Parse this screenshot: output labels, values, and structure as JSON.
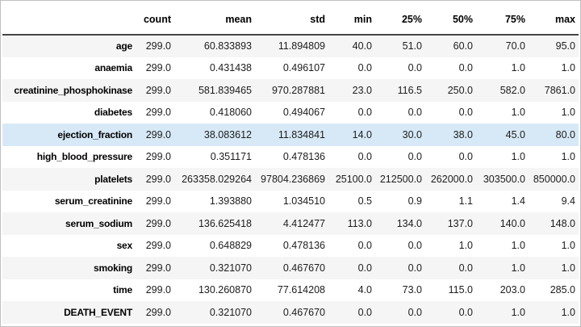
{
  "accent_colors": {
    "row_stripe": "#f5f5f5",
    "row_highlight": "#d7e9f7",
    "header_rule": "#454545",
    "frame_border": "#bfbfbf"
  },
  "chart_data": {
    "type": "table",
    "description": "pandas describe() summary statistics table, ejection_fraction row highlighted",
    "corner_label": "",
    "columns": [
      "count",
      "mean",
      "std",
      "min",
      "25%",
      "50%",
      "75%",
      "max"
    ],
    "rows": [
      {
        "label": "age",
        "highlighted": false,
        "values": [
          "299.0",
          "60.833893",
          "11.894809",
          "40.0",
          "51.0",
          "60.0",
          "70.0",
          "95.0"
        ]
      },
      {
        "label": "anaemia",
        "highlighted": false,
        "values": [
          "299.0",
          "0.431438",
          "0.496107",
          "0.0",
          "0.0",
          "0.0",
          "1.0",
          "1.0"
        ]
      },
      {
        "label": "creatinine_phosphokinase",
        "highlighted": false,
        "values": [
          "299.0",
          "581.839465",
          "970.287881",
          "23.0",
          "116.5",
          "250.0",
          "582.0",
          "7861.0"
        ]
      },
      {
        "label": "diabetes",
        "highlighted": false,
        "values": [
          "299.0",
          "0.418060",
          "0.494067",
          "0.0",
          "0.0",
          "0.0",
          "1.0",
          "1.0"
        ]
      },
      {
        "label": "ejection_fraction",
        "highlighted": true,
        "values": [
          "299.0",
          "38.083612",
          "11.834841",
          "14.0",
          "30.0",
          "38.0",
          "45.0",
          "80.0"
        ]
      },
      {
        "label": "high_blood_pressure",
        "highlighted": false,
        "values": [
          "299.0",
          "0.351171",
          "0.478136",
          "0.0",
          "0.0",
          "0.0",
          "1.0",
          "1.0"
        ]
      },
      {
        "label": "platelets",
        "highlighted": false,
        "values": [
          "299.0",
          "263358.029264",
          "97804.236869",
          "25100.0",
          "212500.0",
          "262000.0",
          "303500.0",
          "850000.0"
        ]
      },
      {
        "label": "serum_creatinine",
        "highlighted": false,
        "values": [
          "299.0",
          "1.393880",
          "1.034510",
          "0.5",
          "0.9",
          "1.1",
          "1.4",
          "9.4"
        ]
      },
      {
        "label": "serum_sodium",
        "highlighted": false,
        "values": [
          "299.0",
          "136.625418",
          "4.412477",
          "113.0",
          "134.0",
          "137.0",
          "140.0",
          "148.0"
        ]
      },
      {
        "label": "sex",
        "highlighted": false,
        "values": [
          "299.0",
          "0.648829",
          "0.478136",
          "0.0",
          "0.0",
          "1.0",
          "1.0",
          "1.0"
        ]
      },
      {
        "label": "smoking",
        "highlighted": false,
        "values": [
          "299.0",
          "0.321070",
          "0.467670",
          "0.0",
          "0.0",
          "0.0",
          "1.0",
          "1.0"
        ]
      },
      {
        "label": "time",
        "highlighted": false,
        "values": [
          "299.0",
          "130.260870",
          "77.614208",
          "4.0",
          "73.0",
          "115.0",
          "203.0",
          "285.0"
        ]
      },
      {
        "label": "DEATH_EVENT",
        "highlighted": false,
        "values": [
          "299.0",
          "0.321070",
          "0.467670",
          "0.0",
          "0.0",
          "0.0",
          "1.0",
          "1.0"
        ]
      }
    ]
  }
}
